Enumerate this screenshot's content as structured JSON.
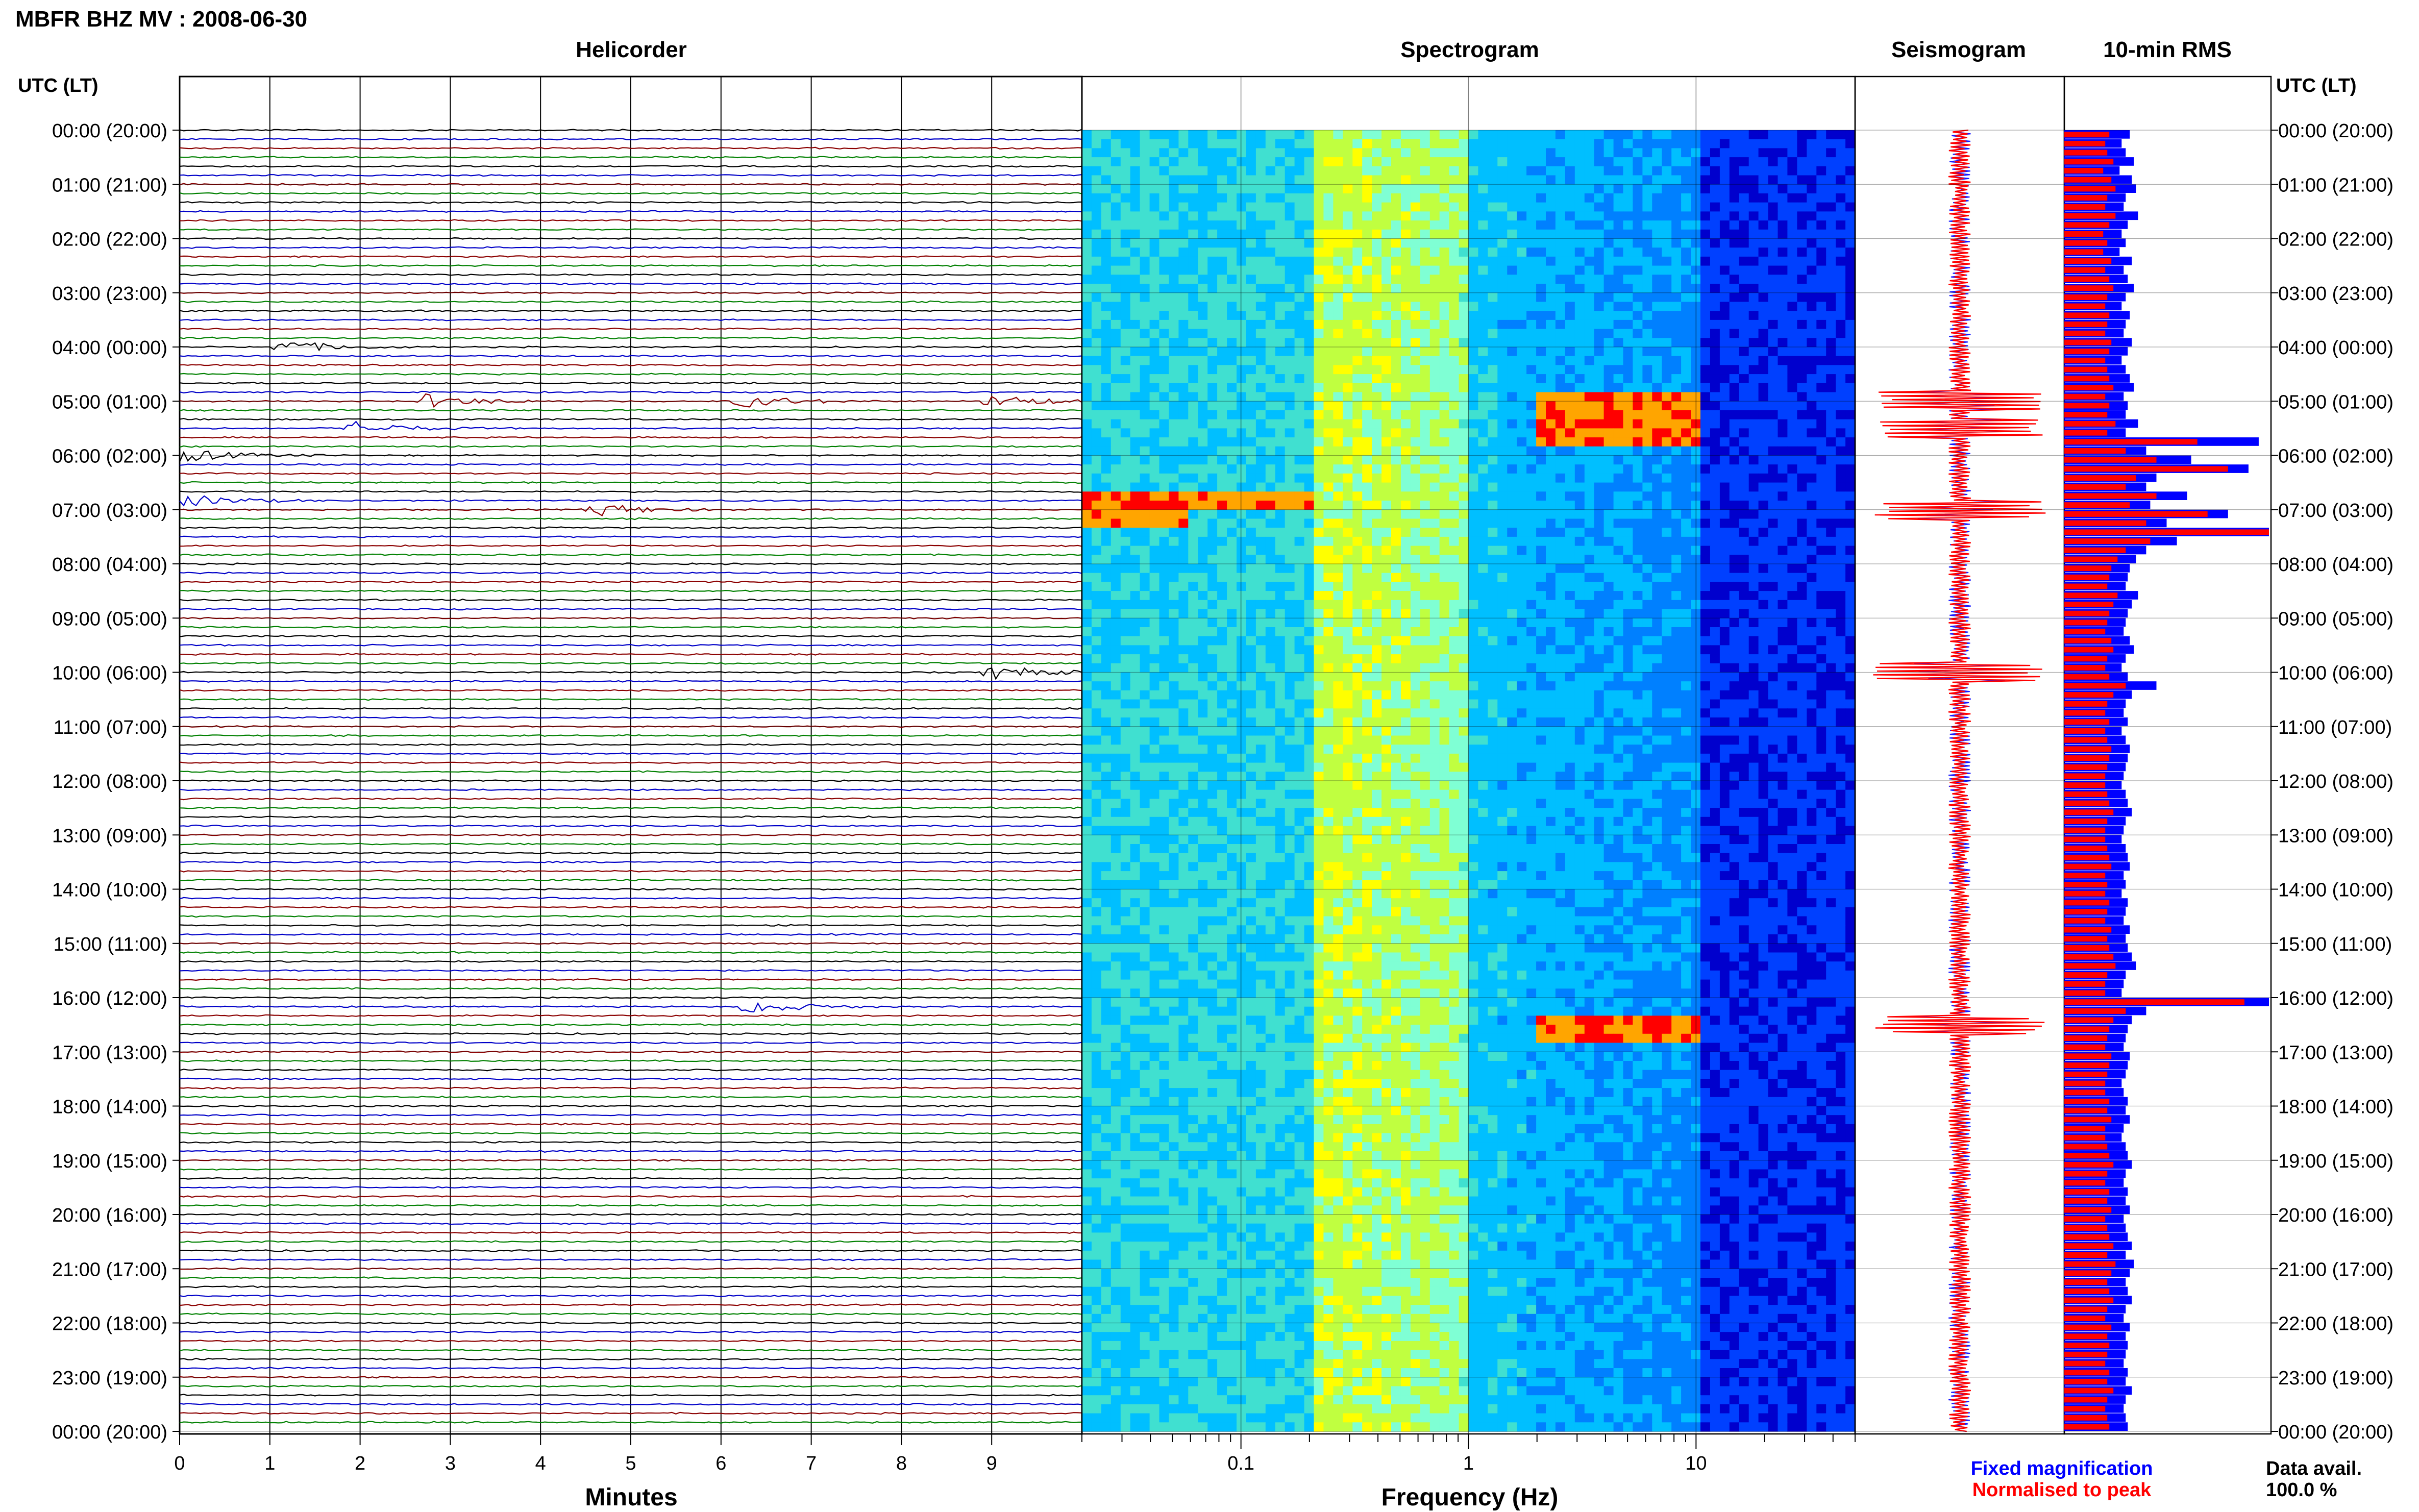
{
  "header": {
    "title": "MBFR BHZ MV : 2008-06-30"
  },
  "panels": {
    "helicorder_title": "Helicorder",
    "spectrogram_title": "Spectrogram",
    "seismogram_title": "Seismogram",
    "rms_title": "10-min RMS"
  },
  "axis": {
    "time_label_left": "UTC (LT)",
    "time_label_right": "UTC (LT)",
    "minutes_label": "Minutes",
    "frequency_label": "Frequency (Hz)"
  },
  "legend": {
    "fixed": "Fixed magnification",
    "normalised": "Normalised to peak",
    "data_avail_label": "Data avail.",
    "data_avail_value": "100.0 %"
  },
  "colors": {
    "trace_black": "#000000",
    "trace_blue": "#0000c8",
    "trace_red": "#8b0000",
    "trace_green": "#008000",
    "rms_fixed": "#0000ff",
    "rms_normalised": "#ff0000",
    "spectro_low": "#00008b",
    "spectro_mid": "#00bfff",
    "spectro_high": "#ffff00",
    "spectro_peak": "#ff0000"
  },
  "chart_data": [
    {
      "type": "line",
      "title": "Helicorder",
      "xlabel": "Minutes",
      "ylabel": "UTC (LT)",
      "xlim": [
        0,
        10
      ],
      "x_ticks": [
        "0",
        "1",
        "2",
        "3",
        "4",
        "5",
        "6",
        "7",
        "8",
        "9"
      ],
      "y_ticks": [
        "00:00 (20:00)",
        "01:00 (21:00)",
        "02:00 (22:00)",
        "03:00 (23:00)",
        "04:00 (00:00)",
        "05:00 (01:00)",
        "06:00 (02:00)",
        "07:00 (03:00)",
        "08:00 (04:00)",
        "09:00 (05:00)",
        "10:00 (06:00)",
        "11:00 (07:00)",
        "12:00 (08:00)",
        "13:00 (09:00)",
        "14:00 (10:00)",
        "15:00 (11:00)",
        "16:00 (12:00)",
        "17:00 (13:00)",
        "18:00 (14:00)",
        "19:00 (15:00)",
        "20:00 (16:00)",
        "21:00 (17:00)",
        "22:00 (18:00)",
        "23:00 (19:00)",
        "00:00 (20:00)"
      ],
      "trace_minutes_per_line": 10,
      "lines": 144,
      "events": [
        {
          "time": "04:00",
          "minute": 1.1
        },
        {
          "time": "05:00",
          "minute": 2.7
        },
        {
          "time": "05:00",
          "minute": 6.2
        },
        {
          "time": "05:00",
          "minute": 9.0
        },
        {
          "time": "05:30",
          "minute": 1.9
        },
        {
          "time": "06:00",
          "minute": 0.0
        },
        {
          "time": "06:50",
          "minute": 0.0
        },
        {
          "time": "07:00",
          "minute": 4.6
        },
        {
          "time": "10:00",
          "minute": 9.0
        },
        {
          "time": "16:10",
          "minute": 6.3
        }
      ]
    },
    {
      "type": "heatmap",
      "title": "Spectrogram",
      "xlabel": "Frequency (Hz)",
      "x_scale": "log",
      "xlim": [
        0.02,
        50
      ],
      "x_ticks": [
        "0.1",
        "1",
        "10"
      ],
      "notable_rows": [
        {
          "time": "05:00",
          "band_hz": [
            2,
            10
          ]
        },
        {
          "time": "05:30",
          "band_hz": [
            2,
            10
          ]
        },
        {
          "time": "06:45",
          "band_hz": [
            0.02,
            0.2
          ]
        },
        {
          "time": "07:00",
          "band_hz": [
            0.02,
            0.06
          ]
        },
        {
          "time": "16:30",
          "band_hz": [
            2,
            10
          ]
        }
      ]
    },
    {
      "type": "line",
      "title": "Seismogram",
      "series": [
        {
          "name": "Fixed magnification",
          "color": "#0000ff"
        },
        {
          "name": "Normalised to peak",
          "color": "#ff0000"
        }
      ],
      "notable_peaks": [
        "05:00",
        "05:30",
        "07:00",
        "10:00",
        "16:30"
      ]
    },
    {
      "type": "bar",
      "title": "10-min RMS",
      "orientation": "horizontal",
      "categories_count": 144,
      "series": [
        {
          "name": "Fixed magnification",
          "color": "#0000ff",
          "values": [
            0.32,
            0.28,
            0.3,
            0.34,
            0.27,
            0.33,
            0.35,
            0.3,
            0.29,
            0.36,
            0.31,
            0.28,
            0.3,
            0.27,
            0.33,
            0.29,
            0.31,
            0.34,
            0.3,
            0.28,
            0.32,
            0.3,
            0.29,
            0.33,
            0.31,
            0.28,
            0.3,
            0.32,
            0.34,
            0.29,
            0.31,
            0.3,
            0.36,
            0.3,
            0.95,
            0.4,
            0.62,
            0.9,
            0.45,
            0.4,
            0.6,
            0.42,
            0.8,
            0.5,
            1.0,
            0.55,
            0.4,
            0.35,
            0.32,
            0.31,
            0.3,
            0.36,
            0.33,
            0.31,
            0.3,
            0.29,
            0.32,
            0.34,
            0.3,
            0.28,
            0.31,
            0.45,
            0.33,
            0.3,
            0.29,
            0.31,
            0.28,
            0.3,
            0.32,
            0.31,
            0.3,
            0.29,
            0.28,
            0.3,
            0.31,
            0.33,
            0.3,
            0.29,
            0.28,
            0.3,
            0.31,
            0.32,
            0.29,
            0.3,
            0.28,
            0.31,
            0.3,
            0.29,
            0.32,
            0.3,
            0.31,
            0.33,
            0.35,
            0.3,
            0.29,
            0.28,
            1.0,
            0.4,
            0.33,
            0.31,
            0.3,
            0.29,
            0.32,
            0.31,
            0.3,
            0.28,
            0.29,
            0.31,
            0.3,
            0.32,
            0.29,
            0.28,
            0.3,
            0.31,
            0.33,
            0.3,
            0.29,
            0.31,
            0.3,
            0.32,
            0.29,
            0.3,
            0.31,
            0.33,
            0.3,
            0.34,
            0.32,
            0.3,
            0.31,
            0.33,
            0.3,
            0.29,
            0.32,
            0.3,
            0.31,
            0.3,
            0.29,
            0.31,
            0.3,
            0.33,
            0.3,
            0.29,
            0.3,
            0.31
          ]
        },
        {
          "name": "Normalised to peak",
          "color": "#ff0000",
          "values": [
            0.22,
            0.2,
            0.21,
            0.24,
            0.19,
            0.23,
            0.25,
            0.21,
            0.2,
            0.25,
            0.22,
            0.19,
            0.21,
            0.19,
            0.23,
            0.2,
            0.22,
            0.24,
            0.21,
            0.2,
            0.22,
            0.21,
            0.2,
            0.23,
            0.22,
            0.2,
            0.21,
            0.22,
            0.24,
            0.2,
            0.22,
            0.21,
            0.25,
            0.21,
            0.65,
            0.3,
            0.45,
            0.8,
            0.35,
            0.3,
            0.45,
            0.32,
            0.7,
            0.4,
            1.0,
            0.42,
            0.3,
            0.26,
            0.23,
            0.22,
            0.21,
            0.26,
            0.24,
            0.22,
            0.21,
            0.2,
            0.23,
            0.24,
            0.21,
            0.2,
            0.22,
            0.3,
            0.24,
            0.21,
            0.2,
            0.22,
            0.2,
            0.21,
            0.23,
            0.22,
            0.21,
            0.2,
            0.2,
            0.21,
            0.22,
            0.24,
            0.21,
            0.2,
            0.2,
            0.21,
            0.22,
            0.23,
            0.2,
            0.21,
            0.2,
            0.22,
            0.21,
            0.2,
            0.23,
            0.21,
            0.22,
            0.24,
            0.25,
            0.21,
            0.2,
            0.2,
            0.88,
            0.3,
            0.24,
            0.22,
            0.21,
            0.2,
            0.23,
            0.22,
            0.21,
            0.2,
            0.2,
            0.22,
            0.21,
            0.23,
            0.2,
            0.2,
            0.21,
            0.22,
            0.24,
            0.21,
            0.2,
            0.22,
            0.21,
            0.23,
            0.2,
            0.21,
            0.22,
            0.24,
            0.21,
            0.25,
            0.23,
            0.21,
            0.22,
            0.24,
            0.21,
            0.2,
            0.23,
            0.21,
            0.22,
            0.21,
            0.2,
            0.22,
            0.21,
            0.24,
            0.21,
            0.2,
            0.21,
            0.22
          ]
        }
      ]
    }
  ]
}
